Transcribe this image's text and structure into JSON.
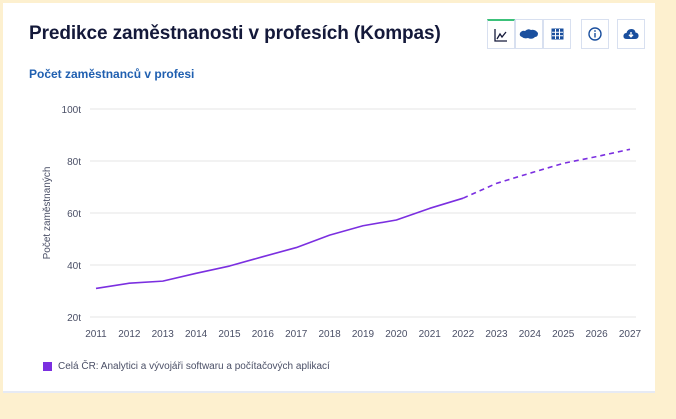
{
  "header": {
    "title": "Predikce zaměstnanosti v profesích (Kompas)",
    "subtitle": "Počet zaměstnanců v profesi"
  },
  "toolbar": {
    "buttons": [
      {
        "icon": "line-chart-icon",
        "active": true
      },
      {
        "icon": "map-icon",
        "active": false
      },
      {
        "icon": "table-icon",
        "active": false
      },
      {
        "icon": "info-icon",
        "active": false
      },
      {
        "icon": "cloud-download-icon",
        "active": false
      }
    ]
  },
  "colors": {
    "series": "#7b2fe0",
    "accent": "#1f5fb0",
    "active_tab": "#3cc17a"
  },
  "chart_data": {
    "type": "line",
    "ylabel": "Počet zaměstnaných",
    "xlabel": "",
    "ylim": [
      20,
      100
    ],
    "yticks": [
      "20t",
      "40t",
      "60t",
      "80t",
      "100t"
    ],
    "ytick_values": [
      20,
      40,
      60,
      80,
      100
    ],
    "grid": true,
    "legend_position": "bottom-left",
    "x": [
      "2011",
      "2012",
      "2013",
      "2014",
      "2015",
      "2016",
      "2017",
      "2018",
      "2019",
      "2020",
      "2021",
      "2022",
      "2023",
      "2024",
      "2025",
      "2026",
      "2027"
    ],
    "series": [
      {
        "name": "Celá ČR: Analytici a vývojáři softwaru a počítačových aplikací",
        "values": [
          31.0,
          33.0,
          33.8,
          36.8,
          39.6,
          43.2,
          46.7,
          51.5,
          55.1,
          57.3,
          61.8,
          65.7,
          71.4,
          75.3,
          79.1,
          81.7,
          84.5
        ],
        "forecast_from": "2022"
      }
    ]
  }
}
